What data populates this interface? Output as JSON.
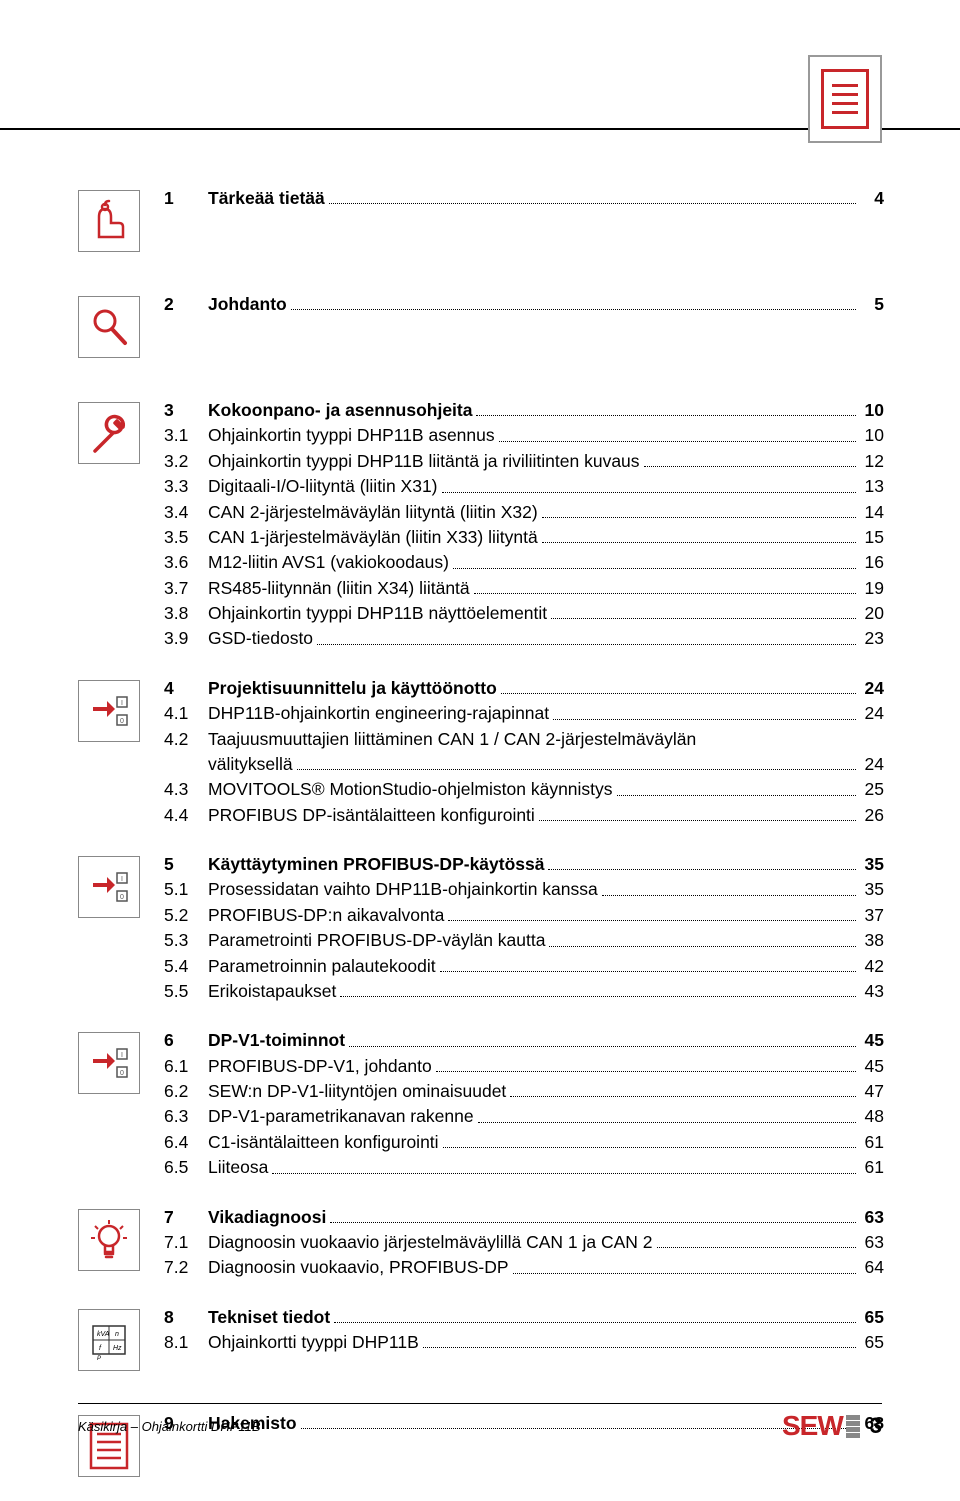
{
  "colors": {
    "accent": "#c8262a",
    "icon_border": "#888888",
    "text": "#000000",
    "background": "#ffffff"
  },
  "typography": {
    "body_size_pt": 13,
    "bold_weight": 700,
    "family": "Arial"
  },
  "corner_icon": {
    "name": "document-lines-icon"
  },
  "footer": {
    "left_text": "Käsikirja – Ohjainkortti DHP11B",
    "logo_text": "SEW",
    "logo_sub": "EURODRIVE",
    "page_number": "3"
  },
  "toc": [
    {
      "icon": "hand-point",
      "gap": "lg",
      "lines": [
        {
          "num": "1",
          "label": "Tärkeää tietää",
          "page": "4",
          "bold": true
        }
      ]
    },
    {
      "icon": "magnifier",
      "gap": "lg",
      "lines": [
        {
          "num": "2",
          "label": "Johdanto",
          "page": "5",
          "bold": true
        }
      ]
    },
    {
      "icon": "wrench",
      "lines": [
        {
          "num": "3",
          "label": "Kokoonpano- ja asennusohjeita",
          "page": "10",
          "bold": true
        },
        {
          "num": "3.1",
          "label": "Ohjainkortin tyyppi DHP11B asennus",
          "page": "10"
        },
        {
          "num": "3.2",
          "label": "Ohjainkortin tyyppi DHP11B liitäntä ja riviliitinten kuvaus",
          "page": "12"
        },
        {
          "num": "3.3",
          "label": "Digitaali-I/O-liityntä (liitin X31)",
          "page": "13"
        },
        {
          "num": "3.4",
          "label": "CAN 2-järjestelmäväylän liityntä (liitin X32)",
          "page": "14"
        },
        {
          "num": "3.5",
          "label": "CAN 1-järjestelmäväylän (liitin X33) liityntä",
          "page": "15"
        },
        {
          "num": "3.6",
          "label": "M12-liitin AVS1 (vakiokoodaus)",
          "page": "16"
        },
        {
          "num": "3.7",
          "label": "RS485-liitynnän (liitin X34) liitäntä",
          "page": "19"
        },
        {
          "num": "3.8",
          "label": "Ohjainkortin tyyppi DHP11B näyttöelementit",
          "page": "20"
        },
        {
          "num": "3.9",
          "label": "GSD-tiedosto",
          "page": "23"
        }
      ]
    },
    {
      "icon": "hand-io",
      "lines": [
        {
          "num": "4",
          "label": "Projektisuunnittelu ja käyttöönotto",
          "page": "24",
          "bold": true
        },
        {
          "num": "4.1",
          "label": "DHP11B-ohjainkortin engineering-rajapinnat",
          "page": "24"
        },
        {
          "num": "4.2",
          "label": "Taajuusmuuttajien liittäminen CAN 1 / CAN 2-järjestelmäväylän",
          "cont_label": "välityksellä",
          "page": "24",
          "multiline": true
        },
        {
          "num": "4.3",
          "label": "MOVITOOLS® MotionStudio-ohjelmiston käynnistys",
          "page": "25"
        },
        {
          "num": "4.4",
          "label": "PROFIBUS DP-isäntälaitteen konfigurointi",
          "page": "26"
        }
      ]
    },
    {
      "icon": "hand-io",
      "lines": [
        {
          "num": "5",
          "label": "Käyttäytyminen PROFIBUS-DP-käytössä",
          "page": "35",
          "bold": true
        },
        {
          "num": "5.1",
          "label": "Prosessidatan vaihto DHP11B-ohjainkortin kanssa",
          "page": "35"
        },
        {
          "num": "5.2",
          "label": "PROFIBUS-DP:n aikavalvonta",
          "page": "37"
        },
        {
          "num": "5.3",
          "label": "Parametrointi PROFIBUS-DP-väylän kautta",
          "page": "38"
        },
        {
          "num": "5.4",
          "label": "Parametroinnin palautekoodit",
          "page": "42"
        },
        {
          "num": "5.5",
          "label": "Erikoistapaukset",
          "page": "43"
        }
      ]
    },
    {
      "icon": "hand-io",
      "lines": [
        {
          "num": "6",
          "label": "DP-V1-toiminnot",
          "page": "45",
          "bold": true
        },
        {
          "num": "6.1",
          "label": "PROFIBUS-DP-V1, johdanto",
          "page": "45"
        },
        {
          "num": "6.2",
          "label": "SEW:n DP-V1-liityntöjen ominaisuudet",
          "page": "47"
        },
        {
          "num": "6.3",
          "label": "DP-V1-parametrikanavan rakenne",
          "page": "48"
        },
        {
          "num": "6.4",
          "label": "C1-isäntälaitteen konfigurointi",
          "page": "61"
        },
        {
          "num": "6.5",
          "label": "Liiteosa",
          "page": "61"
        }
      ]
    },
    {
      "icon": "lightbulb",
      "lines": [
        {
          "num": "7",
          "label": "Vikadiagnoosi",
          "page": "63",
          "bold": true
        },
        {
          "num": "7.1",
          "label": "Diagnoosin vuokaavio järjestelmäväylillä CAN 1 ja CAN 2",
          "page": "63"
        },
        {
          "num": "7.2",
          "label": "Diagnoosin vuokaavio, PROFIBUS-DP",
          "page": "64"
        }
      ]
    },
    {
      "icon": "grid-units",
      "gap": "lg",
      "lines": [
        {
          "num": "8",
          "label": "Tekniset tiedot",
          "page": "65",
          "bold": true
        },
        {
          "num": "8.1",
          "label": "Ohjainkortti tyyppi DHP11B",
          "page": "65"
        }
      ]
    },
    {
      "icon": "doc-lines",
      "lines": [
        {
          "num": "9",
          "label": "Hakemisto",
          "page": "68",
          "bold": true
        }
      ]
    }
  ]
}
